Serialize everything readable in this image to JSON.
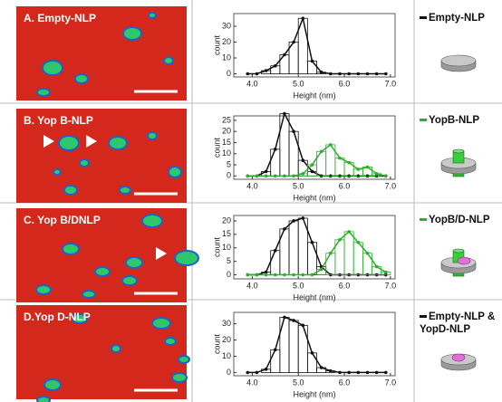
{
  "chart_data": [
    {
      "type": "histogram",
      "panel_label": "A. Empty-NLP",
      "xlabel": "Height (nm)",
      "ylabel": "count",
      "bins": [
        3.8,
        4,
        4.2,
        4.4,
        4.6,
        4.8,
        5,
        5.2,
        5.4,
        5.6,
        5.8,
        6,
        6.2,
        6.4,
        6.6,
        6.8,
        7
      ],
      "xlim": [
        3.6,
        7.1
      ],
      "xticks": [
        {
          "value": 4,
          "label": "4.0"
        },
        {
          "value": 5,
          "label": "5.0"
        },
        {
          "value": 6,
          "label": "6.0"
        },
        {
          "value": 7,
          "label": "7.0"
        }
      ],
      "ylim": [
        -2,
        38
      ],
      "yticks": [
        0,
        10,
        20,
        30
      ],
      "series": [
        {
          "name": "Empty-NLP",
          "color": "#111111",
          "values": [
            0,
            0,
            2,
            5,
            12,
            20,
            35,
            8,
            1,
            0,
            0,
            0,
            0,
            0,
            0,
            0
          ]
        }
      ]
    },
    {
      "type": "histogram",
      "panel_label": "B. Yop B-NLP",
      "xlabel": "Height (nm)",
      "ylabel": "count",
      "bins": [
        3.8,
        4,
        4.2,
        4.4,
        4.6,
        4.8,
        5,
        5.2,
        5.4,
        5.6,
        5.8,
        6,
        6.2,
        6.4,
        6.6,
        6.8,
        7
      ],
      "xlim": [
        3.6,
        7.1
      ],
      "xticks": [
        {
          "value": 4,
          "label": "4.0"
        },
        {
          "value": 5,
          "label": "5.0"
        },
        {
          "value": 6,
          "label": "6.0"
        },
        {
          "value": 7,
          "label": "7.0"
        }
      ],
      "ylim": [
        -1.5,
        27
      ],
      "yticks": [
        0,
        5,
        10,
        15,
        20,
        25
      ],
      "series": [
        {
          "color": "#111111",
          "values": [
            0,
            0,
            2,
            12,
            28,
            20,
            7,
            2,
            0,
            0,
            0,
            0,
            0,
            0,
            0,
            0
          ]
        },
        {
          "name": "YopB-NLP",
          "color": "#2ab02a",
          "values": [
            0,
            0,
            0,
            0,
            0,
            0,
            1,
            5,
            11,
            14,
            8,
            6,
            3,
            4,
            1,
            0
          ]
        }
      ]
    },
    {
      "type": "histogram",
      "panel_label": "C. Yop B/DNLP",
      "xlabel": "Height (nm)",
      "ylabel": "count",
      "bins": [
        3.8,
        4,
        4.2,
        4.4,
        4.6,
        4.8,
        5,
        5.2,
        5.4,
        5.6,
        5.8,
        6,
        6.2,
        6.4,
        6.6,
        6.8,
        7
      ],
      "xlim": [
        3.6,
        7.1
      ],
      "xticks": [
        {
          "value": 4,
          "label": "4.0"
        },
        {
          "value": 5,
          "label": "5.0"
        },
        {
          "value": 6,
          "label": "6.0"
        },
        {
          "value": 7,
          "label": "7.0"
        }
      ],
      "ylim": [
        -1.5,
        22
      ],
      "yticks": [
        0,
        5,
        10,
        15,
        20
      ],
      "series": [
        {
          "color": "#111111",
          "values": [
            0,
            0,
            1,
            9,
            17,
            20,
            21,
            12,
            3,
            0,
            0,
            0,
            0,
            0,
            0,
            0
          ]
        },
        {
          "name": "YopB/D-NLP",
          "color": "#2ab02a",
          "values": [
            0,
            0,
            0,
            0,
            0,
            0,
            0,
            0,
            2,
            8,
            13,
            16,
            12,
            8,
            3,
            1
          ]
        }
      ]
    },
    {
      "type": "histogram",
      "panel_label": "D.Yop D-NLP",
      "xlabel": "Height (nm)",
      "ylabel": "count",
      "bins": [
        3.8,
        4,
        4.2,
        4.4,
        4.6,
        4.8,
        5,
        5.2,
        5.4,
        5.6,
        5.8,
        6,
        6.2,
        6.4,
        6.6,
        6.8,
        7
      ],
      "xlim": [
        3.6,
        7.1
      ],
      "xticks": [
        {
          "value": 4,
          "label": "4.0"
        },
        {
          "value": 5,
          "label": "5.0"
        },
        {
          "value": 6,
          "label": "6.0"
        },
        {
          "value": 7,
          "label": "7.0"
        }
      ],
      "ylim": [
        -2,
        37
      ],
      "yticks": [
        0,
        10,
        20,
        30
      ],
      "series": [
        {
          "name": "Empty-NLP & YopD-NLP",
          "color": "#111111",
          "values": [
            0,
            0,
            2,
            14,
            34,
            32,
            29,
            12,
            3,
            1,
            0,
            0,
            0,
            0,
            0,
            0
          ]
        }
      ]
    }
  ]
}
